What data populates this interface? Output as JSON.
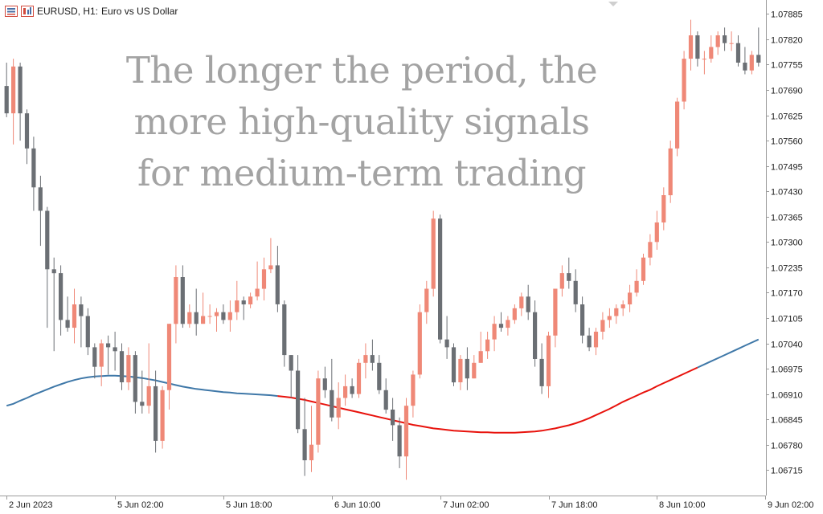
{
  "header": {
    "symbol": "EURUSD, H1:",
    "description": "Euro vs US Dollar",
    "chart_icon": "candlestick-chart-icon",
    "indicator_icon": "indicators-list-icon"
  },
  "overlay": {
    "line1": "The longer the period, the",
    "line2": "more high-quality signals",
    "line3": "for medium-term trading"
  },
  "colors": {
    "bull": "#ef8877",
    "bear": "#6b6f74",
    "ma_rising": "#3f78a8",
    "ma_falling": "#e8120c",
    "text": "#1a1a1a",
    "border": "#9b9b9b"
  },
  "chart_data": {
    "type": "candlestick",
    "symbol": "EURUSD",
    "timeframe": "H1",
    "ylim": [
      1.0666,
      1.079
    ],
    "y_ticks": [
      "1.07885",
      "1.07820",
      "1.07755",
      "1.07690",
      "1.07625",
      "1.07560",
      "1.07495",
      "1.07430",
      "1.07365",
      "1.07300",
      "1.07235",
      "1.07170",
      "1.07105",
      "1.07040",
      "1.06975",
      "1.06910",
      "1.06845",
      "1.06780",
      "1.06715"
    ],
    "x_ticks": [
      {
        "label": "2 Jun 2023",
        "index": 0
      },
      {
        "label": "5 Jun 02:00",
        "index": 16
      },
      {
        "label": "5 Jun 18:00",
        "index": 32
      },
      {
        "label": "6 Jun 10:00",
        "index": 48
      },
      {
        "label": "7 Jun 02:00",
        "index": 64
      },
      {
        "label": "7 Jun 18:00",
        "index": 80
      },
      {
        "label": "8 Jun 10:00",
        "index": 96
      },
      {
        "label": "9 Jun 02:00",
        "index": 112
      }
    ],
    "candles": [
      [
        1.077,
        1.0776,
        1.0762,
        1.0763
      ],
      [
        1.0763,
        1.0777,
        1.0755,
        1.0775
      ],
      [
        1.0775,
        1.0776,
        1.0756,
        1.0763
      ],
      [
        1.0763,
        1.0764,
        1.075,
        1.0754
      ],
      [
        1.0754,
        1.0757,
        1.0738,
        1.0744
      ],
      [
        1.0744,
        1.0747,
        1.0729,
        1.0738
      ],
      [
        1.0738,
        1.0739,
        1.0708,
        1.0723
      ],
      [
        1.0723,
        1.0726,
        1.0702,
        1.0722
      ],
      [
        1.0722,
        1.0724,
        1.0706,
        1.071
      ],
      [
        1.071,
        1.0716,
        1.0707,
        1.0708
      ],
      [
        1.0708,
        1.0718,
        1.0704,
        1.0714
      ],
      [
        1.0714,
        1.0716,
        1.0703,
        1.0711
      ],
      [
        1.0711,
        1.0713,
        1.0701,
        1.0703
      ],
      [
        1.0703,
        1.0704,
        1.0695,
        1.0698
      ],
      [
        1.0698,
        1.0705,
        1.0693,
        1.0704
      ],
      [
        1.0704,
        1.0706,
        1.0696,
        1.0703
      ],
      [
        1.0703,
        1.0707,
        1.0697,
        1.0702
      ],
      [
        1.0702,
        1.0704,
        1.0692,
        1.0694
      ],
      [
        1.0694,
        1.0703,
        1.0692,
        1.0701
      ],
      [
        1.0701,
        1.0702,
        1.0686,
        1.0689
      ],
      [
        1.0689,
        1.0697,
        1.0686,
        1.0688
      ],
      [
        1.0688,
        1.0704,
        1.0686,
        1.0693
      ],
      [
        1.0693,
        1.0697,
        1.0676,
        1.0679
      ],
      [
        1.0679,
        1.0693,
        1.0677,
        1.0692
      ],
      [
        1.0692,
        1.0709,
        1.0687,
        1.0709
      ],
      [
        1.0709,
        1.0724,
        1.0704,
        1.0721
      ],
      [
        1.0721,
        1.0724,
        1.0708,
        1.0709
      ],
      [
        1.0709,
        1.0714,
        1.0708,
        1.0712
      ],
      [
        1.0712,
        1.0718,
        1.0706,
        1.0709
      ],
      [
        1.0709,
        1.0717,
        1.0709,
        1.0711
      ],
      [
        1.0711,
        1.0714,
        1.0709,
        1.0711
      ],
      [
        1.0711,
        1.0713,
        1.0707,
        1.0712
      ],
      [
        1.0712,
        1.0714,
        1.0709,
        1.071
      ],
      [
        1.071,
        1.0715,
        1.0707,
        1.0712
      ],
      [
        1.0712,
        1.072,
        1.071,
        1.0715
      ],
      [
        1.0715,
        1.0716,
        1.071,
        1.0714
      ],
      [
        1.0714,
        1.0717,
        1.0713,
        1.0716
      ],
      [
        1.0716,
        1.0725,
        1.0715,
        1.0718
      ],
      [
        1.0718,
        1.0726,
        1.0715,
        1.0723
      ],
      [
        1.0723,
        1.0731,
        1.0722,
        1.0724
      ],
      [
        1.0724,
        1.0729,
        1.0712,
        1.0714
      ],
      [
        1.0714,
        1.0715,
        1.0698,
        1.0701
      ],
      [
        1.0701,
        1.0701,
        1.069,
        1.0697
      ],
      [
        1.0697,
        1.0701,
        1.0681,
        1.0682
      ],
      [
        1.0682,
        1.069,
        1.067,
        1.0674
      ],
      [
        1.0674,
        1.0688,
        1.0671,
        1.0678
      ],
      [
        1.0678,
        1.0697,
        1.0676,
        1.0695
      ],
      [
        1.0695,
        1.0698,
        1.069,
        1.0692
      ],
      [
        1.0692,
        1.07,
        1.0684,
        1.0685
      ],
      [
        1.0685,
        1.0694,
        1.0682,
        1.069
      ],
      [
        1.069,
        1.0696,
        1.0688,
        1.0693
      ],
      [
        1.0693,
        1.0695,
        1.069,
        1.0691
      ],
      [
        1.0691,
        1.07,
        1.069,
        1.0699
      ],
      [
        1.0699,
        1.0704,
        1.0695,
        1.0701
      ],
      [
        1.0701,
        1.0705,
        1.0697,
        1.0699
      ],
      [
        1.0699,
        1.0701,
        1.0691,
        1.0692
      ],
      [
        1.0692,
        1.0695,
        1.0686,
        1.0687
      ],
      [
        1.0687,
        1.069,
        1.0679,
        1.0683
      ],
      [
        1.0683,
        1.0685,
        1.0672,
        1.0675
      ],
      [
        1.0675,
        1.069,
        1.0669,
        1.0688
      ],
      [
        1.0688,
        1.0697,
        1.0685,
        1.0696
      ],
      [
        1.0696,
        1.0714,
        1.0695,
        1.0712
      ],
      [
        1.0712,
        1.072,
        1.0709,
        1.0718
      ],
      [
        1.0718,
        1.0738,
        1.0716,
        1.0736
      ],
      [
        1.0736,
        1.0737,
        1.0704,
        1.0705
      ],
      [
        1.0705,
        1.0711,
        1.07,
        1.0703
      ],
      [
        1.0703,
        1.0704,
        1.0693,
        1.0694
      ],
      [
        1.0694,
        1.0701,
        1.0692,
        1.07
      ],
      [
        1.07,
        1.0703,
        1.0692,
        1.0695
      ],
      [
        1.0695,
        1.0701,
        1.0695,
        1.0699
      ],
      [
        1.0699,
        1.0707,
        1.0699,
        1.0702
      ],
      [
        1.0702,
        1.0707,
        1.07,
        1.0705
      ],
      [
        1.0705,
        1.0711,
        1.0702,
        1.0709
      ],
      [
        1.0709,
        1.0712,
        1.0707,
        1.0708
      ],
      [
        1.0708,
        1.0711,
        1.0706,
        1.071
      ],
      [
        1.071,
        1.0714,
        1.0709,
        1.0713
      ],
      [
        1.0713,
        1.0717,
        1.0711,
        1.0716
      ],
      [
        1.0716,
        1.0719,
        1.071,
        1.0712
      ],
      [
        1.0712,
        1.0715,
        1.0698,
        1.07
      ],
      [
        1.07,
        1.0704,
        1.0691,
        1.0693
      ],
      [
        1.0693,
        1.0707,
        1.069,
        1.0706
      ],
      [
        1.0706,
        1.0718,
        1.0703,
        1.0718
      ],
      [
        1.0718,
        1.0724,
        1.0716,
        1.0722
      ],
      [
        1.0722,
        1.0726,
        1.0718,
        1.072
      ],
      [
        1.072,
        1.0723,
        1.0712,
        1.0714
      ],
      [
        1.0714,
        1.0716,
        1.0704,
        1.0706
      ],
      [
        1.0706,
        1.0708,
        1.0702,
        1.0703
      ],
      [
        1.0703,
        1.0708,
        1.0701,
        1.0707
      ],
      [
        1.0707,
        1.0712,
        1.0705,
        1.071
      ],
      [
        1.071,
        1.0713,
        1.0708,
        1.0711
      ],
      [
        1.0711,
        1.0714,
        1.0709,
        1.0713
      ],
      [
        1.0713,
        1.0715,
        1.0711,
        1.0714
      ],
      [
        1.0714,
        1.0719,
        1.0712,
        1.0717
      ],
      [
        1.0717,
        1.0723,
        1.0716,
        1.072
      ],
      [
        1.072,
        1.0727,
        1.0719,
        1.0726
      ],
      [
        1.0726,
        1.0732,
        1.0724,
        1.073
      ],
      [
        1.073,
        1.0738,
        1.0728,
        1.0735
      ],
      [
        1.0735,
        1.0744,
        1.0733,
        1.0742
      ],
      [
        1.0742,
        1.0756,
        1.074,
        1.0754
      ],
      [
        1.0754,
        1.0767,
        1.0752,
        1.0766
      ],
      [
        1.0766,
        1.0779,
        1.0764,
        1.0777
      ],
      [
        1.0777,
        1.0787,
        1.0774,
        1.0783
      ],
      [
        1.0783,
        1.0784,
        1.0775,
        1.0777
      ],
      [
        1.0777,
        1.0779,
        1.0773,
        1.0777
      ],
      [
        1.0777,
        1.0783,
        1.0776,
        1.078
      ],
      [
        1.078,
        1.0784,
        1.0778,
        1.0783
      ],
      [
        1.0783,
        1.0785,
        1.0779,
        1.0781
      ],
      [
        1.0781,
        1.0784,
        1.0779,
        1.0781
      ],
      [
        1.0781,
        1.0783,
        1.0775,
        1.0776
      ],
      [
        1.0776,
        1.078,
        1.0773,
        1.0774
      ],
      [
        1.0774,
        1.0779,
        1.0773,
        1.0778
      ],
      [
        1.0778,
        1.0785,
        1.0775,
        1.0776
      ]
    ],
    "moving_average": [
      1.0688,
      1.06885,
      1.06893,
      1.069,
      1.06908,
      1.06915,
      1.06922,
      1.06929,
      1.06935,
      1.06941,
      1.06946,
      1.0695,
      1.06953,
      1.06955,
      1.06956,
      1.06957,
      1.06957,
      1.06956,
      1.06955,
      1.06953,
      1.06951,
      1.06948,
      1.06945,
      1.06941,
      1.06937,
      1.06933,
      1.06929,
      1.06926,
      1.06923,
      1.06921,
      1.06919,
      1.06917,
      1.06915,
      1.06914,
      1.06912,
      1.06911,
      1.0691,
      1.06909,
      1.06908,
      1.06907,
      1.06905,
      1.06903,
      1.06901,
      1.06898,
      1.06895,
      1.06891,
      1.06887,
      1.06883,
      1.06879,
      1.06875,
      1.06871,
      1.06867,
      1.06863,
      1.06859,
      1.06855,
      1.06851,
      1.06847,
      1.06843,
      1.06839,
      1.06835,
      1.06831,
      1.06828,
      1.06825,
      1.06822,
      1.0682,
      1.06818,
      1.06816,
      1.06815,
      1.06814,
      1.06813,
      1.06812,
      1.06812,
      1.06811,
      1.06811,
      1.06811,
      1.06811,
      1.06812,
      1.06813,
      1.06814,
      1.06816,
      1.06819,
      1.06822,
      1.06826,
      1.0683,
      1.06835,
      1.06841,
      1.06848,
      1.06856,
      1.06864,
      1.06872,
      1.06881,
      1.0689,
      1.06898,
      1.06906,
      1.06914,
      1.06921,
      1.0693,
      1.06938,
      1.06946,
      1.06954,
      1.06962,
      1.0697,
      1.06978,
      1.06986,
      1.06994,
      1.07002,
      1.0701,
      1.07018,
      1.07026,
      1.07034,
      1.07042,
      1.0705
    ],
    "ma_color_change_index": [
      40,
      102
    ]
  }
}
